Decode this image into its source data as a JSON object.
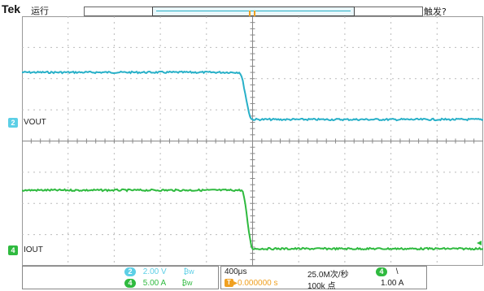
{
  "header": {
    "brand": "Tek",
    "run_status": "运行",
    "trigger_status": "触发?"
  },
  "trigger": {
    "badge": "T"
  },
  "channels": [
    {
      "id": "2",
      "label": "VOUT",
      "color": "#5ccfe6"
    },
    {
      "id": "4",
      "label": "IOUT",
      "color": "#2fba3f"
    }
  ],
  "readout": {
    "ch2": {
      "chip": "2",
      "scale": "2.00 V",
      "bw": "₿w"
    },
    "ch4": {
      "chip": "4",
      "scale": "5.00 A",
      "bw": "₿w"
    }
  },
  "timebase": {
    "time_per_div": "400μs",
    "trigger_offset_prefix": "T",
    "trigger_offset": "▸0.000000 s",
    "sample_rate": "25.0M次/秒",
    "record_length": "100k 点",
    "trigger_source_chip": "4",
    "trigger_slope": "\\",
    "trigger_level": "1.00 A"
  },
  "colors": {
    "ch2": "#5ccfe6",
    "ch2_trace": "#28b0c8",
    "ch4": "#2fba3f",
    "trigger": "#f0a020"
  }
}
